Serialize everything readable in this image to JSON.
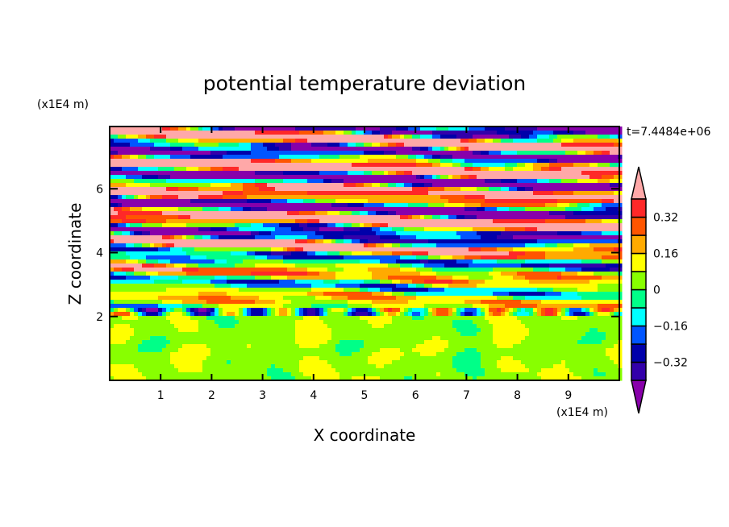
{
  "chart_data": {
    "type": "heatmap",
    "title": "potential temperature deviation",
    "xlabel": "X coordinate",
    "ylabel": "Z coordinate",
    "x_scale_label": "(x1E4 m)",
    "y_scale_label": "(x1E4 m)",
    "time_label": "t=7.4484e+06",
    "xlim": [
      0,
      10
    ],
    "ylim": [
      0,
      7.95
    ],
    "x_ticks": [
      "1",
      "2",
      "3",
      "4",
      "5",
      "6",
      "7",
      "8",
      "9"
    ],
    "y_ticks": [
      "2",
      "4",
      "6"
    ],
    "levels": [
      -0.4,
      -0.32,
      -0.24,
      -0.16,
      -0.08,
      0,
      0.08,
      0.16,
      0.24,
      0.32,
      0.4
    ],
    "colors": [
      "#8800AA",
      "#3300AA",
      "#0000AA",
      "#0055FF",
      "#00FFFF",
      "#00FF88",
      "#88FF00",
      "#FFFF00",
      "#FFAA00",
      "#FF5500",
      "#FF2828",
      "#FFA8A8"
    ],
    "colorbar_labels": [
      {
        "label": "0.32",
        "value": 0.32
      },
      {
        "label": "0.16",
        "value": 0.16
      },
      {
        "label": "0",
        "value": 0
      },
      {
        "label": "−0.16",
        "value": -0.16
      },
      {
        "label": "−0.32",
        "value": -0.32
      }
    ],
    "description_bands": "z<2 weak near-zero; 2-4 weak banded; above 4 strong layered oscillations"
  }
}
